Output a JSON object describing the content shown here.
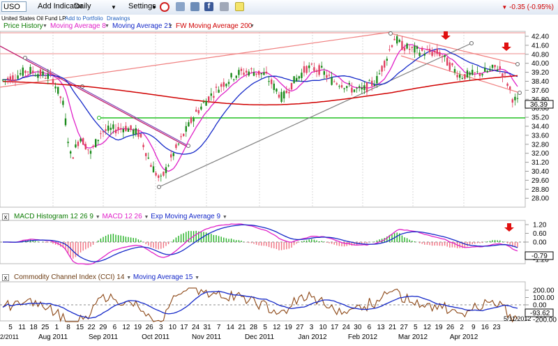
{
  "toolbar": {
    "symbol": "USO",
    "add_indicator": "Add Indicator",
    "period": "Daily",
    "settings": "Settings",
    "price_change": "-0.35 (-0.95%)",
    "icons": [
      "alarm-clock-icon",
      "clipboard-icon",
      "print-icon",
      "facebook-icon",
      "email-icon",
      "sticky-note-icon"
    ]
  },
  "subline": {
    "name": "United States Oil Fund LP",
    "add_portfolio": "Add to Portfolio",
    "drawings": "Drawings"
  },
  "legend": {
    "price_history": "Price History",
    "ma8": "Moving Average 8",
    "ma21": "Moving Average 21",
    "fw200": "FW Moving Average 200",
    "colors": {
      "ma8": "#e020c8",
      "ma21": "#1428c8",
      "fw200": "#d00000",
      "price_history": "#0a7a00"
    }
  },
  "price_panel": {
    "y_labels": [
      "42.40",
      "41.60",
      "40.80",
      "40.00",
      "39.20",
      "38.40",
      "37.60",
      "36.80",
      "36.00",
      "35.20",
      "34.40",
      "33.60",
      "32.80",
      "32.00",
      "31.20",
      "30.40",
      "29.60",
      "28.80",
      "28.00"
    ],
    "last_price": "36.39"
  },
  "macd_panel": {
    "hist_label": "MACD Histogram 12 26 9",
    "macd_label": "MACD 12 26",
    "exp_label": "Exp Moving Average 9",
    "y_labels": [
      "1.20",
      "0.60",
      "0.00",
      "-1.20"
    ],
    "last_value": "-0.79"
  },
  "cci_panel": {
    "cci_label": "Commodity Channel Index (CCI) 14",
    "ma_label": "Moving Average 15",
    "y_labels": [
      "200.00",
      "100.00",
      "0.00",
      "-200.00"
    ],
    "last_value": "-93.62"
  },
  "x_axis": {
    "days": [
      "5",
      "11",
      "18",
      "25",
      "1",
      "8",
      "15",
      "22",
      "29",
      "6",
      "12",
      "19",
      "26",
      "3",
      "10",
      "17",
      "24",
      "31",
      "7",
      "14",
      "21",
      "28",
      "5",
      "12",
      "19",
      "27",
      "3",
      "10",
      "17",
      "24",
      "30",
      "6",
      "13",
      "21",
      "27",
      "5",
      "12",
      "19",
      "26",
      "2",
      "9",
      "16",
      "23"
    ],
    "months": [
      "Aug 2011",
      "Sep 2011",
      "Oct 2011",
      "Nov 2011",
      "Dec 2011",
      "Jan 2012",
      "Feb 2012",
      "Mar 2012",
      "Apr 2012"
    ],
    "start_label": "2/2011",
    "end_label": "5/11/2012"
  }
}
